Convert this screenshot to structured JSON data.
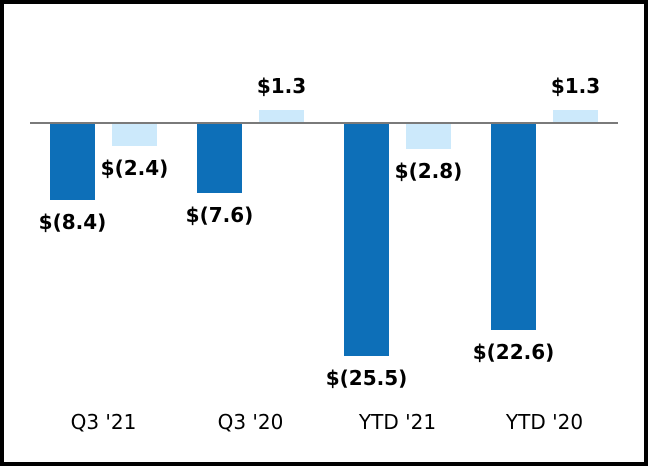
{
  "chart_data": {
    "type": "bar",
    "title": "",
    "categories": [
      "Q3 '21",
      "Q3 '20",
      "YTD '21",
      "YTD '20"
    ],
    "series": [
      {
        "name": "dark-blue",
        "color": "#0d6fb8",
        "values": [
          -8.4,
          -7.6,
          -25.5,
          -22.6
        ],
        "labels": [
          "$(8.4)",
          "$(7.6)",
          "$(25.5)",
          "$(22.6)"
        ]
      },
      {
        "name": "light-blue",
        "color": "#cce9fb",
        "values": [
          -2.4,
          1.3,
          -2.8,
          1.3
        ],
        "labels": [
          "$(2.4)",
          "$1.3",
          "$(2.8)",
          "$1.3"
        ]
      }
    ],
    "xlabel": "",
    "ylabel": "",
    "ylim": [
      -28,
      3
    ],
    "grid": false,
    "legend": false,
    "zero_line_color": "#7a7a7a",
    "frame_border_color": "#000000",
    "background_color": "#ffffff"
  }
}
